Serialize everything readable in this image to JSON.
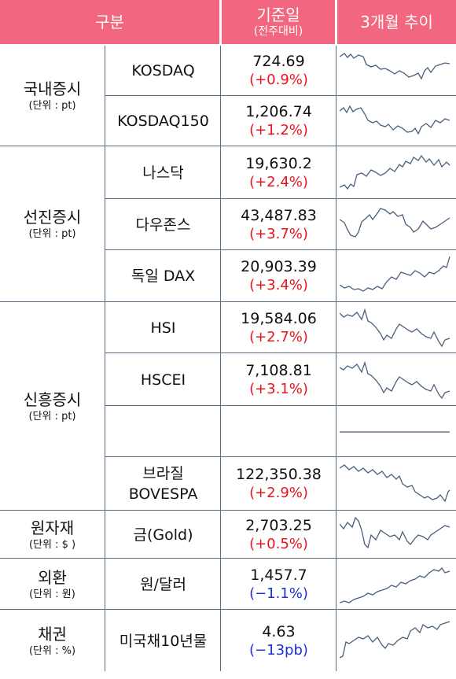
{
  "header": {
    "category": "구분",
    "base_date": "기준일",
    "base_date_sub": "(전주대비)",
    "trend": "3개월 추이"
  },
  "colors": {
    "header_bg": "#f3667f",
    "up": "#e8141c",
    "down": "#1a2fd6",
    "line": "#4a5f7a"
  },
  "groups": [
    {
      "name": "국내증시",
      "unit": "(단위 : pt)"
    },
    {
      "name": "선진증시",
      "unit": "(단위 : pt)"
    },
    {
      "name": "신흥증시",
      "unit": "(단위 : pt)"
    },
    {
      "name": "원자재",
      "unit": "(단위 : $ )"
    },
    {
      "name": "외환",
      "unit": "(단위 : 원)"
    },
    {
      "name": "채권",
      "unit": "(단위 : %)"
    }
  ],
  "rows": [
    {
      "name": "KOSDAQ",
      "value": "724.69",
      "change": "(+0.9%)",
      "dir": "up"
    },
    {
      "name": "KOSDAQ150",
      "value": "1,206.74",
      "change": "(+1.2%)",
      "dir": "up"
    },
    {
      "name": "나스닥",
      "value": "19,630.2",
      "change": "(+2.4%)",
      "dir": "up"
    },
    {
      "name": "다우존스",
      "value": "43,487.83",
      "change": "(+3.7%)",
      "dir": "up"
    },
    {
      "name": "독일 DAX",
      "value": "20,903.39",
      "change": "(+3.4%)",
      "dir": "up"
    },
    {
      "name": "HSI",
      "value": "19,584.06",
      "change": "(+2.7%)",
      "dir": "up"
    },
    {
      "name": "HSCEI",
      "value": "7,108.81",
      "change": "(+3.1%)",
      "dir": "up"
    },
    {
      "name": "",
      "value": "",
      "change": "",
      "dir": "flat"
    },
    {
      "name": "브라질",
      "name2": "BOVESPA",
      "value": "122,350.38",
      "change": "(+2.9%)",
      "dir": "up"
    },
    {
      "name": "금(Gold)",
      "value": "2,703.25",
      "change": "(+0.5%)",
      "dir": "up"
    },
    {
      "name": "원/달러",
      "value": "1,457.7",
      "change": "(−1.1%)",
      "dir": "down"
    },
    {
      "name": "미국채10년물",
      "value": "4.63",
      "change": "(−13pb)",
      "dir": "down"
    }
  ]
}
